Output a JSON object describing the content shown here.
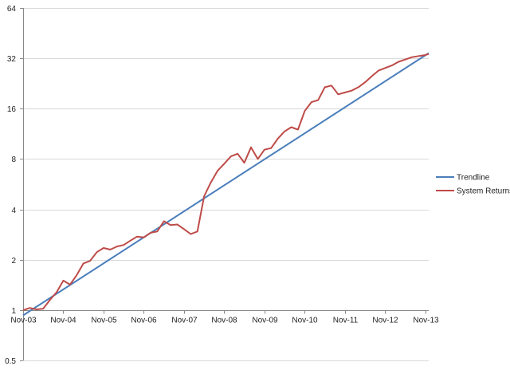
{
  "chart_data": {
    "type": "line",
    "title": "",
    "xlabel": "",
    "ylabel": "",
    "y_scale": "log2",
    "ylim": [
      0.5,
      64
    ],
    "y_ticks": [
      "0.5",
      "1",
      "2",
      "4",
      "8",
      "16",
      "32",
      "64"
    ],
    "x_range": [
      "2003-11",
      "2013-12"
    ],
    "x_ticks": [
      "Nov-03",
      "Nov-04",
      "Nov-05",
      "Nov-06",
      "Nov-07",
      "Nov-08",
      "Nov-09",
      "Nov-10",
      "Nov-11",
      "Nov-12",
      "Nov-13"
    ],
    "x_tick_dates": [
      "2003-11",
      "2004-11",
      "2005-11",
      "2006-11",
      "2007-11",
      "2008-11",
      "2009-11",
      "2010-11",
      "2011-11",
      "2012-11",
      "2013-11"
    ],
    "x_axis_crosses_at": 1,
    "grid": "horizontal major gridlines",
    "legend_position": "right",
    "series": [
      {
        "name": "Trendline",
        "color": "#4a7ebb",
        "x": [
          "2003-11",
          "2013-12"
        ],
        "values": [
          0.93,
          34.4
        ]
      },
      {
        "name": "System Returns",
        "color": "#be4b48",
        "x": [
          "2003-11",
          "2004-01",
          "2004-03",
          "2004-05",
          "2004-07",
          "2004-09",
          "2004-11",
          "2005-01",
          "2005-03",
          "2005-05",
          "2005-07",
          "2005-09",
          "2005-11",
          "2006-01",
          "2006-03",
          "2006-05",
          "2006-07",
          "2006-09",
          "2006-11",
          "2007-01",
          "2007-03",
          "2007-05",
          "2007-07",
          "2007-09",
          "2007-11",
          "2008-01",
          "2008-03",
          "2008-05",
          "2008-07",
          "2008-09",
          "2008-11",
          "2009-01",
          "2009-03",
          "2009-05",
          "2009-07",
          "2009-09",
          "2009-11",
          "2010-01",
          "2010-03",
          "2010-05",
          "2010-07",
          "2010-09",
          "2010-11",
          "2011-01",
          "2011-03",
          "2011-05",
          "2011-07",
          "2011-09",
          "2011-11",
          "2012-01",
          "2012-03",
          "2012-05",
          "2012-07",
          "2012-09",
          "2012-11",
          "2013-01",
          "2013-03",
          "2013-05",
          "2013-07",
          "2013-09",
          "2013-11",
          "2013-12"
        ],
        "values": [
          1.0,
          1.03,
          1.01,
          1.02,
          1.15,
          1.28,
          1.5,
          1.42,
          1.62,
          1.9,
          1.97,
          2.22,
          2.35,
          2.3,
          2.4,
          2.45,
          2.6,
          2.75,
          2.72,
          2.9,
          2.95,
          3.4,
          3.22,
          3.25,
          3.05,
          2.85,
          2.95,
          4.8,
          5.8,
          6.8,
          7.5,
          8.3,
          8.6,
          7.6,
          9.4,
          8.0,
          9.1,
          9.3,
          10.6,
          11.7,
          12.4,
          12.0,
          15.5,
          17.5,
          18.0,
          21.5,
          22.0,
          19.5,
          20.0,
          20.5,
          21.5,
          23.0,
          25.0,
          27.0,
          28.0,
          29.0,
          30.5,
          31.5,
          32.5,
          33.0,
          33.5,
          34.0
        ]
      }
    ]
  }
}
